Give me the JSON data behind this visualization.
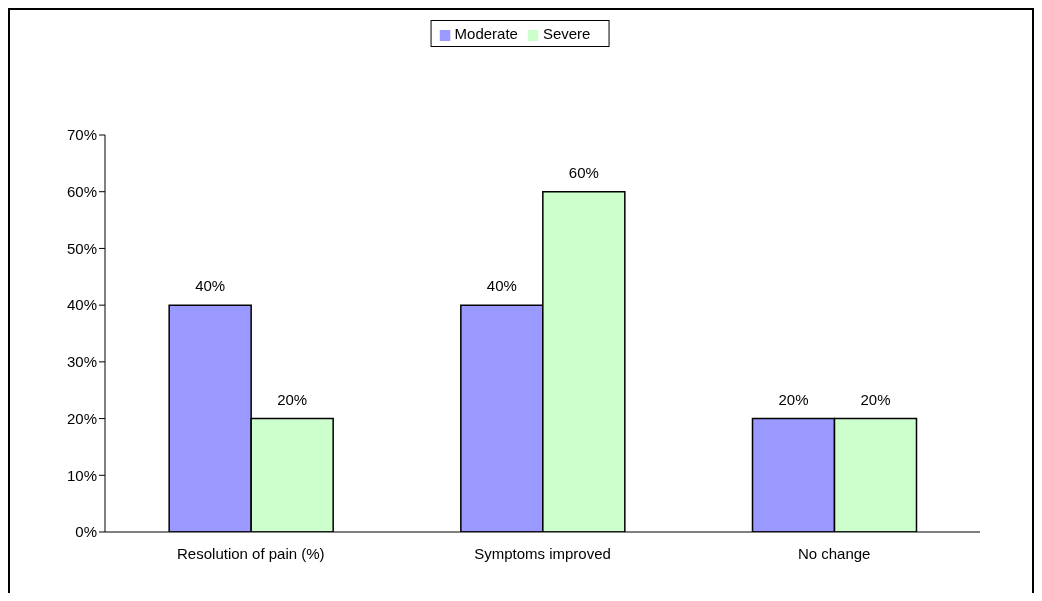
{
  "chart_data": {
    "type": "bar",
    "categories": [
      "Resolution of pain (%)",
      "Symptoms improved",
      "No change"
    ],
    "series": [
      {
        "name": "Moderate",
        "color": "#9999ff",
        "values": [
          40,
          40,
          20
        ],
        "value_labels": [
          "40%",
          "40%",
          "20%"
        ]
      },
      {
        "name": "Severe",
        "color": "#ccffcc",
        "values": [
          20,
          60,
          20
        ],
        "value_labels": [
          "20%",
          "60%",
          "20%"
        ]
      }
    ],
    "ylim": [
      0,
      70
    ],
    "yticks": [
      {
        "value": 0,
        "label": "0%"
      },
      {
        "value": 10,
        "label": "10%"
      },
      {
        "value": 20,
        "label": "20%"
      },
      {
        "value": 30,
        "label": "30%"
      },
      {
        "value": 40,
        "label": "40%"
      },
      {
        "value": 50,
        "label": "50%"
      },
      {
        "value": 60,
        "label": "60%"
      },
      {
        "value": 70,
        "label": "70%"
      }
    ],
    "grid": false,
    "legend": "top"
  }
}
